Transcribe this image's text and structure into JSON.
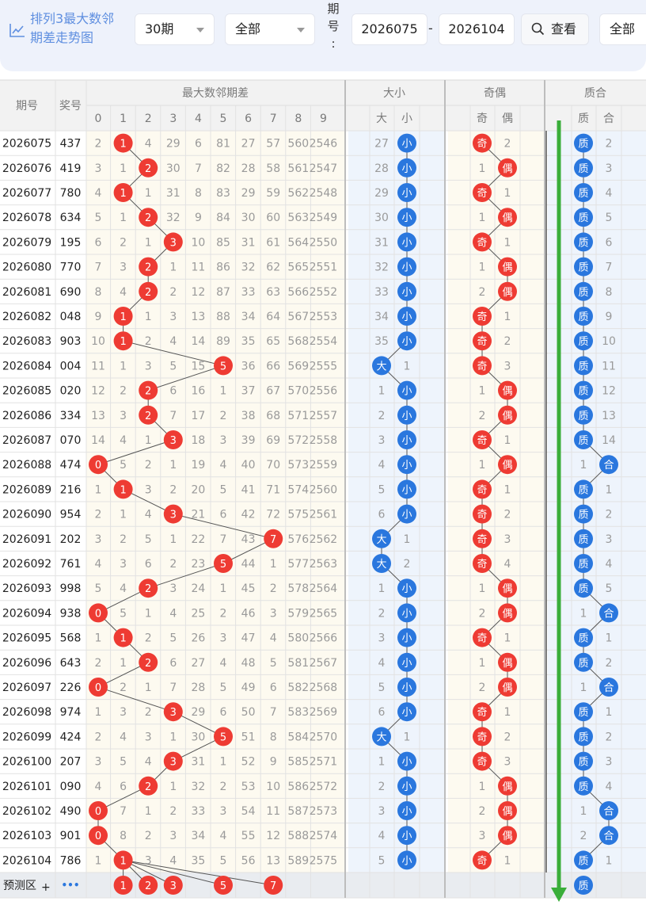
{
  "app": {
    "title_line1": "排列3最大数邻",
    "title_line2": "期差走势图",
    "period_select": "30期",
    "scope_select": "全部",
    "range_label": "期号:",
    "start_issue": "2026075",
    "range_dash": "-",
    "end_issue": "2026104",
    "view_button": "查看",
    "filter_select": "全部"
  },
  "colors": {
    "red_ball": "#ee3b33",
    "blue_ball": "#2a77de",
    "green_arrow": "#3aae3a",
    "header_bg": "#f2f2f2",
    "panel_bg": "#fdfaf0"
  },
  "table": {
    "headers": {
      "issue": "期号",
      "number": "奖号",
      "span_group": "最大数邻期差",
      "size_group": "大小",
      "parity_group": "奇偶",
      "prime_group": "质合",
      "digits": [
        "0",
        "1",
        "2",
        "3",
        "4",
        "5",
        "6",
        "7",
        "8",
        "9"
      ],
      "size_cols": [
        "大",
        "小"
      ],
      "parity_cols": [
        "奇",
        "偶"
      ],
      "prime_cols": [
        "质",
        "合"
      ]
    },
    "rows": [
      {
        "issue": "2026075",
        "number": "437",
        "span": [
          "2",
          "1",
          "4",
          "29",
          "6",
          "81",
          "27",
          "57",
          "560",
          "2546"
        ],
        "size": [
          "27",
          "小"
        ],
        "parity": [
          "奇",
          "2"
        ],
        "prime": [
          "质",
          "2"
        ]
      },
      {
        "issue": "2026076",
        "number": "419",
        "span": [
          "3",
          "1",
          "2",
          "30",
          "7",
          "82",
          "28",
          "58",
          "561",
          "2547"
        ],
        "size": [
          "28",
          "小"
        ],
        "parity": [
          "1",
          "偶"
        ],
        "prime": [
          "质",
          "3"
        ]
      },
      {
        "issue": "2026077",
        "number": "780",
        "span": [
          "4",
          "1",
          "1",
          "31",
          "8",
          "83",
          "29",
          "59",
          "562",
          "2548"
        ],
        "size": [
          "29",
          "小"
        ],
        "parity": [
          "奇",
          "1"
        ],
        "prime": [
          "质",
          "4"
        ]
      },
      {
        "issue": "2026078",
        "number": "634",
        "span": [
          "5",
          "1",
          "2",
          "32",
          "9",
          "84",
          "30",
          "60",
          "563",
          "2549"
        ],
        "size": [
          "30",
          "小"
        ],
        "parity": [
          "1",
          "偶"
        ],
        "prime": [
          "质",
          "5"
        ]
      },
      {
        "issue": "2026079",
        "number": "195",
        "span": [
          "6",
          "2",
          "1",
          "3",
          "10",
          "85",
          "31",
          "61",
          "564",
          "2550"
        ],
        "size": [
          "31",
          "小"
        ],
        "parity": [
          "奇",
          "1"
        ],
        "prime": [
          "质",
          "6"
        ]
      },
      {
        "issue": "2026080",
        "number": "770",
        "span": [
          "7",
          "3",
          "2",
          "1",
          "11",
          "86",
          "32",
          "62",
          "565",
          "2551"
        ],
        "size": [
          "32",
          "小"
        ],
        "parity": [
          "1",
          "偶"
        ],
        "prime": [
          "质",
          "7"
        ]
      },
      {
        "issue": "2026081",
        "number": "690",
        "span": [
          "8",
          "4",
          "2",
          "2",
          "12",
          "87",
          "33",
          "63",
          "566",
          "2552"
        ],
        "size": [
          "33",
          "小"
        ],
        "parity": [
          "2",
          "偶"
        ],
        "prime": [
          "质",
          "8"
        ]
      },
      {
        "issue": "2026082",
        "number": "048",
        "span": [
          "9",
          "1",
          "1",
          "3",
          "13",
          "88",
          "34",
          "64",
          "567",
          "2553"
        ],
        "size": [
          "34",
          "小"
        ],
        "parity": [
          "奇",
          "1"
        ],
        "prime": [
          "质",
          "9"
        ]
      },
      {
        "issue": "2026083",
        "number": "903",
        "span": [
          "10",
          "1",
          "2",
          "4",
          "14",
          "89",
          "35",
          "65",
          "568",
          "2554"
        ],
        "size": [
          "35",
          "小"
        ],
        "parity": [
          "奇",
          "2"
        ],
        "prime": [
          "质",
          "10"
        ]
      },
      {
        "issue": "2026084",
        "number": "004",
        "span": [
          "11",
          "1",
          "3",
          "5",
          "15",
          "5",
          "36",
          "66",
          "569",
          "2555"
        ],
        "size": [
          "大",
          "1"
        ],
        "parity": [
          "奇",
          "3"
        ],
        "prime": [
          "质",
          "11"
        ]
      },
      {
        "issue": "2026085",
        "number": "020",
        "span": [
          "12",
          "2",
          "2",
          "6",
          "16",
          "1",
          "37",
          "67",
          "570",
          "2556"
        ],
        "size": [
          "1",
          "小"
        ],
        "parity": [
          "1",
          "偶"
        ],
        "prime": [
          "质",
          "12"
        ]
      },
      {
        "issue": "2026086",
        "number": "334",
        "span": [
          "13",
          "3",
          "2",
          "7",
          "17",
          "2",
          "38",
          "68",
          "571",
          "2557"
        ],
        "size": [
          "2",
          "小"
        ],
        "parity": [
          "2",
          "偶"
        ],
        "prime": [
          "质",
          "13"
        ]
      },
      {
        "issue": "2026087",
        "number": "070",
        "span": [
          "14",
          "4",
          "1",
          "3",
          "18",
          "3",
          "39",
          "69",
          "572",
          "2558"
        ],
        "size": [
          "3",
          "小"
        ],
        "parity": [
          "奇",
          "1"
        ],
        "prime": [
          "质",
          "14"
        ]
      },
      {
        "issue": "2026088",
        "number": "474",
        "span": [
          "0",
          "5",
          "2",
          "1",
          "19",
          "4",
          "40",
          "70",
          "573",
          "2559"
        ],
        "size": [
          "4",
          "小"
        ],
        "parity": [
          "1",
          "偶"
        ],
        "prime": [
          "1",
          "合"
        ]
      },
      {
        "issue": "2026089",
        "number": "216",
        "span": [
          "1",
          "1",
          "3",
          "2",
          "20",
          "5",
          "41",
          "71",
          "574",
          "2560"
        ],
        "size": [
          "5",
          "小"
        ],
        "parity": [
          "奇",
          "1"
        ],
        "prime": [
          "质",
          "1"
        ]
      },
      {
        "issue": "2026090",
        "number": "954",
        "span": [
          "2",
          "1",
          "4",
          "3",
          "21",
          "6",
          "42",
          "72",
          "575",
          "2561"
        ],
        "size": [
          "6",
          "小"
        ],
        "parity": [
          "奇",
          "2"
        ],
        "prime": [
          "质",
          "2"
        ]
      },
      {
        "issue": "2026091",
        "number": "202",
        "span": [
          "3",
          "2",
          "5",
          "1",
          "22",
          "7",
          "43",
          "7",
          "576",
          "2562"
        ],
        "size": [
          "大",
          "1"
        ],
        "parity": [
          "奇",
          "3"
        ],
        "prime": [
          "质",
          "3"
        ]
      },
      {
        "issue": "2026092",
        "number": "761",
        "span": [
          "4",
          "3",
          "6",
          "2",
          "23",
          "5",
          "44",
          "1",
          "577",
          "2563"
        ],
        "size": [
          "大",
          "2"
        ],
        "parity": [
          "奇",
          "4"
        ],
        "prime": [
          "质",
          "4"
        ]
      },
      {
        "issue": "2026093",
        "number": "998",
        "span": [
          "5",
          "4",
          "2",
          "3",
          "24",
          "1",
          "45",
          "2",
          "578",
          "2564"
        ],
        "size": [
          "1",
          "小"
        ],
        "parity": [
          "1",
          "偶"
        ],
        "prime": [
          "质",
          "5"
        ]
      },
      {
        "issue": "2026094",
        "number": "938",
        "span": [
          "0",
          "5",
          "1",
          "4",
          "25",
          "2",
          "46",
          "3",
          "579",
          "2565"
        ],
        "size": [
          "2",
          "小"
        ],
        "parity": [
          "2",
          "偶"
        ],
        "prime": [
          "1",
          "合"
        ]
      },
      {
        "issue": "2026095",
        "number": "568",
        "span": [
          "1",
          "1",
          "2",
          "5",
          "26",
          "3",
          "47",
          "4",
          "580",
          "2566"
        ],
        "size": [
          "3",
          "小"
        ],
        "parity": [
          "奇",
          "1"
        ],
        "prime": [
          "质",
          "1"
        ]
      },
      {
        "issue": "2026096",
        "number": "643",
        "span": [
          "2",
          "1",
          "2",
          "6",
          "27",
          "4",
          "48",
          "5",
          "581",
          "2567"
        ],
        "size": [
          "4",
          "小"
        ],
        "parity": [
          "1",
          "偶"
        ],
        "prime": [
          "质",
          "2"
        ]
      },
      {
        "issue": "2026097",
        "number": "226",
        "span": [
          "0",
          "2",
          "1",
          "7",
          "28",
          "5",
          "49",
          "6",
          "582",
          "2568"
        ],
        "size": [
          "5",
          "小"
        ],
        "parity": [
          "2",
          "偶"
        ],
        "prime": [
          "1",
          "合"
        ]
      },
      {
        "issue": "2026098",
        "number": "974",
        "span": [
          "1",
          "3",
          "2",
          "3",
          "29",
          "6",
          "50",
          "7",
          "583",
          "2569"
        ],
        "size": [
          "6",
          "小"
        ],
        "parity": [
          "奇",
          "1"
        ],
        "prime": [
          "质",
          "1"
        ]
      },
      {
        "issue": "2026099",
        "number": "424",
        "span": [
          "2",
          "4",
          "3",
          "1",
          "30",
          "5",
          "51",
          "8",
          "584",
          "2570"
        ],
        "size": [
          "大",
          "1"
        ],
        "parity": [
          "奇",
          "2"
        ],
        "prime": [
          "质",
          "2"
        ]
      },
      {
        "issue": "2026100",
        "number": "207",
        "span": [
          "3",
          "5",
          "4",
          "3",
          "31",
          "1",
          "52",
          "9",
          "585",
          "2571"
        ],
        "size": [
          "1",
          "小"
        ],
        "parity": [
          "奇",
          "3"
        ],
        "prime": [
          "质",
          "3"
        ]
      },
      {
        "issue": "2026101",
        "number": "090",
        "span": [
          "4",
          "6",
          "2",
          "1",
          "32",
          "2",
          "53",
          "10",
          "586",
          "2572"
        ],
        "size": [
          "2",
          "小"
        ],
        "parity": [
          "1",
          "偶"
        ],
        "prime": [
          "质",
          "4"
        ]
      },
      {
        "issue": "2026102",
        "number": "490",
        "span": [
          "0",
          "7",
          "1",
          "2",
          "33",
          "3",
          "54",
          "11",
          "587",
          "2573"
        ],
        "size": [
          "3",
          "小"
        ],
        "parity": [
          "2",
          "偶"
        ],
        "prime": [
          "1",
          "合"
        ]
      },
      {
        "issue": "2026103",
        "number": "901",
        "span": [
          "0",
          "8",
          "2",
          "3",
          "34",
          "4",
          "55",
          "12",
          "588",
          "2574"
        ],
        "size": [
          "4",
          "小"
        ],
        "parity": [
          "3",
          "偶"
        ],
        "prime": [
          "2",
          "合"
        ]
      },
      {
        "issue": "2026104",
        "number": "786",
        "span": [
          "1",
          "1",
          "3",
          "4",
          "35",
          "5",
          "56",
          "13",
          "589",
          "2575"
        ],
        "size": [
          "5",
          "小"
        ],
        "parity": [
          "奇",
          "1"
        ],
        "prime": [
          "质",
          "1"
        ]
      }
    ],
    "hits": [
      1,
      2,
      1,
      2,
      3,
      2,
      2,
      1,
      1,
      5,
      2,
      2,
      3,
      0,
      1,
      3,
      7,
      5,
      2,
      0,
      1,
      2,
      0,
      3,
      5,
      3,
      2,
      0,
      0,
      1
    ],
    "prediction": {
      "label": "预测区",
      "add_symbol": "+",
      "more_symbol": "•••",
      "span_balls": [
        "1",
        "2",
        "3",
        "5",
        "7"
      ],
      "prime_ball": "质"
    }
  }
}
